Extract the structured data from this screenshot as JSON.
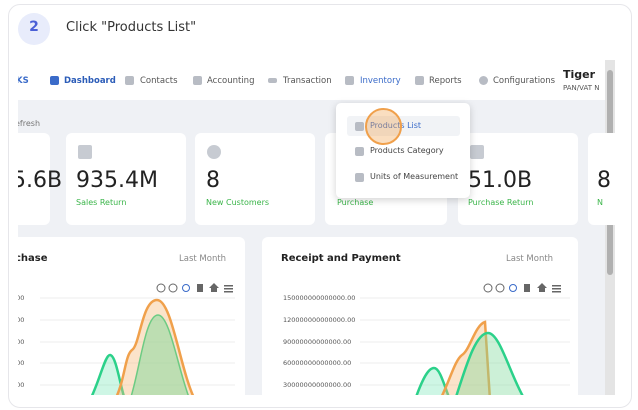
{
  "step": {
    "number": "2",
    "instruction": "Click \"Products List\""
  },
  "nav": {
    "items": [
      "KS",
      "Dashboard",
      "Contacts",
      "Accounting",
      "Transaction",
      "Inventory",
      "Reports",
      "Configurations"
    ],
    "user": {
      "name": "Tiger",
      "subtitle": "PAN/VAT N"
    }
  },
  "toolbar": {
    "refresh": "efresh"
  },
  "dropdown": {
    "items": [
      "Products List",
      "Products Category",
      "Units of Measurement"
    ]
  },
  "cards": [
    {
      "value": "5.6B"
    },
    {
      "value": "935.4M",
      "label": "Sales Return"
    },
    {
      "value": "8",
      "label": "New Customers"
    },
    {
      "label": "Purchase"
    },
    {
      "value": "51.0B",
      "label": "Purchase Return"
    },
    {
      "value": "8",
      "label": "N"
    }
  ],
  "panels": [
    {
      "title": "chase",
      "filter": "Last Month",
      "yticks": [
        ".00",
        ".00",
        ".00",
        ".00",
        ".00"
      ]
    },
    {
      "title": "Receipt and Payment",
      "filter": "Last Month",
      "yticks": [
        "150000000000000.00",
        "120000000000000.00",
        "90000000000000.00",
        "60000000000000.00",
        "30000000000000.00"
      ]
    }
  ]
}
